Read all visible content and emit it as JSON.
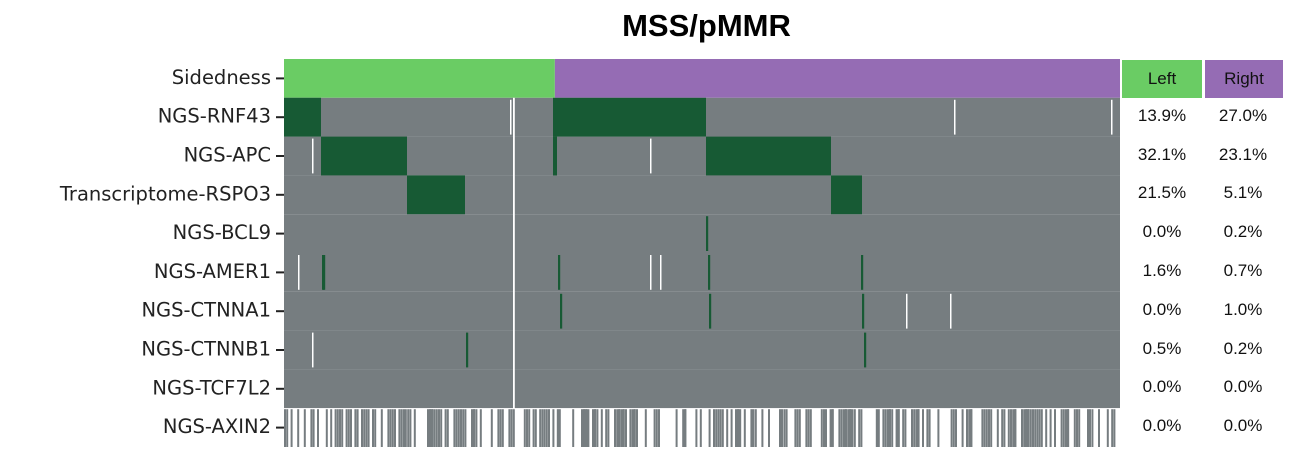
{
  "chart_data": {
    "type": "heatmap",
    "title": "MSS/pMMR",
    "rows": [
      "Sidedness",
      "NGS-RNF43",
      "NGS-APC",
      "Transcriptome-RSPO3",
      "NGS-BCL9",
      "NGS-AMER1",
      "NGS-CTNNA1",
      "NGS-CTNNB1",
      "NGS-TCF7L2",
      "NGS-AXIN2"
    ],
    "groups": [
      "Left",
      "Right"
    ],
    "group_colors": {
      "Left": "#6acc64",
      "Right": "#956cb4"
    },
    "altered_color": "#175a34",
    "wildtype_color": "#767d80",
    "left_fraction": 0.324,
    "percentages": {
      "Left": [
        "",
        "13.9%",
        "32.1%",
        "21.5%",
        "0.0%",
        "1.6%",
        "0.0%",
        "0.5%",
        "0.0%",
        "0.0%"
      ],
      "Right": [
        "",
        "27.0%",
        "23.1%",
        "5.1%",
        "0.2%",
        "0.7%",
        "1.0%",
        "0.2%",
        "0.0%",
        "0.0%"
      ]
    }
  }
}
